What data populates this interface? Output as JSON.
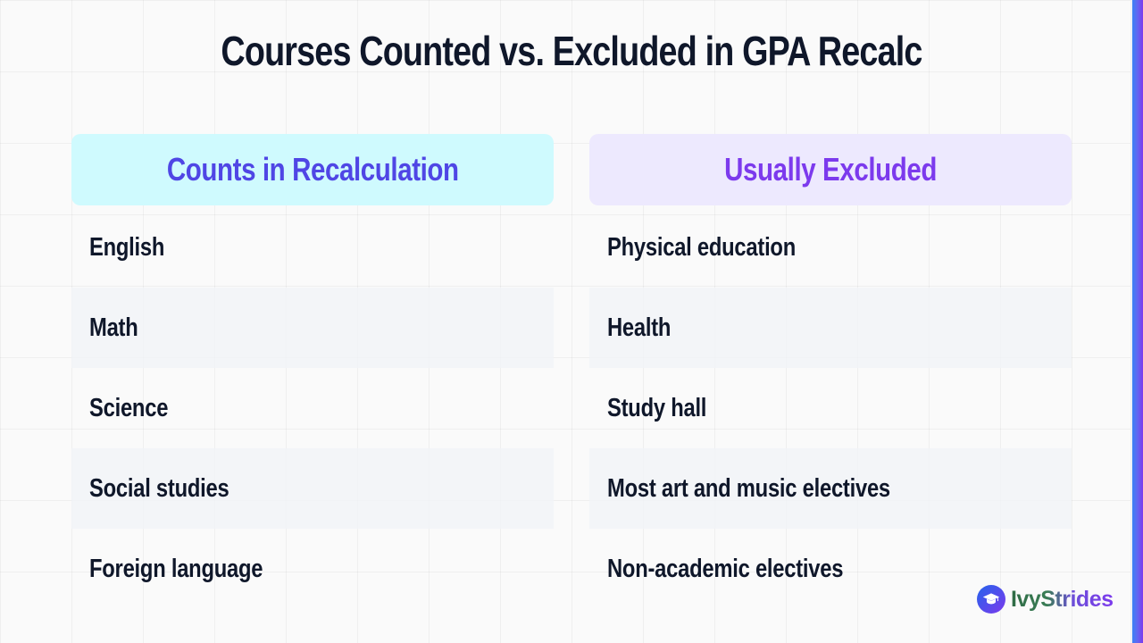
{
  "title": "Courses Counted vs. Excluded in GPA Recalc",
  "columns": [
    {
      "header": "Counts in Recalculation",
      "header_color": "#4f46e5",
      "header_bg": "#cffafe",
      "items": [
        "English",
        "Math",
        "Science",
        "Social studies",
        "Foreign language"
      ]
    },
    {
      "header": "Usually Excluded",
      "header_color": "#7c3aed",
      "header_bg": "#ede9fe",
      "items": [
        "Physical education",
        "Health",
        "Study hall",
        "Most art and music electives",
        "Non-academic electives"
      ]
    }
  ],
  "logo": {
    "icon": "graduation-cap-icon",
    "text": "IvyStrides"
  }
}
